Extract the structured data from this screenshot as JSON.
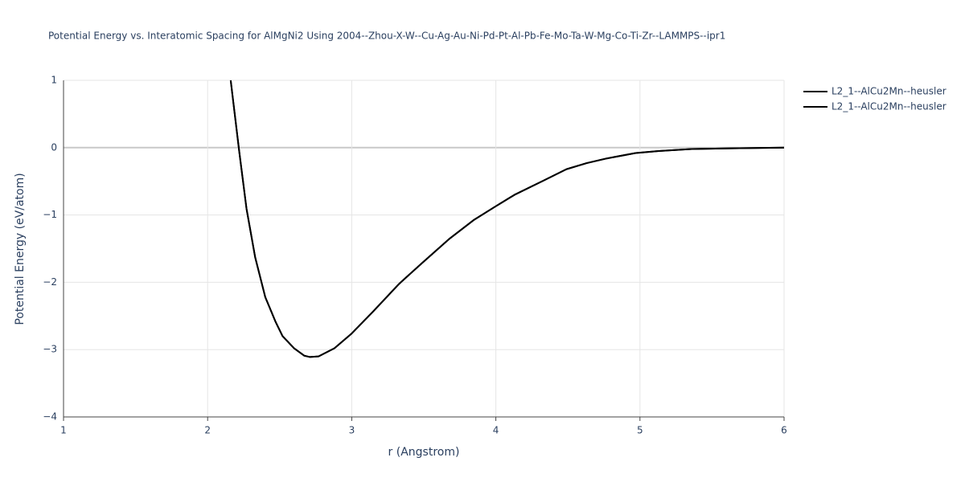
{
  "chart_data": {
    "type": "line",
    "title": "Potential Energy vs. Interatomic Spacing for AlMgNi2 Using 2004--Zhou-X-W--Cu-Ag-Au-Ni-Pd-Pt-Al-Pb-Fe-Mo-Ta-W-Mg-Co-Ti-Zr--LAMMPS--ipr1",
    "x_label": "r (Angstrom)",
    "y_label": "Potential Energy (eV/atom)",
    "x": [
      2.16,
      2.22,
      2.27,
      2.33,
      2.4,
      2.47,
      2.52,
      2.6,
      2.67,
      2.71,
      2.77,
      2.88,
      3.0,
      3.15,
      3.33,
      3.49,
      3.68,
      3.85,
      4.0,
      4.13,
      4.33,
      4.49,
      4.63,
      4.77,
      4.97,
      5.13,
      5.36,
      5.64,
      6.0
    ],
    "series": [
      {
        "name": "L2_1--AlCu2Mn--heusler",
        "color": "#000000",
        "values": [
          1,
          -0.07,
          -0.91,
          -1.63,
          -2.22,
          -2.58,
          -2.8,
          -2.98,
          -3.09,
          -3.11,
          -3.1,
          -2.98,
          -2.76,
          -2.43,
          -2.02,
          -1.71,
          -1.35,
          -1.07,
          -0.87,
          -0.7,
          -0.49,
          -0.32,
          -0.23,
          -0.16,
          -0.08,
          -0.05,
          -0.02,
          -0.01,
          0
        ]
      },
      {
        "name": "L2_1--AlCu2Mn--heusler",
        "color": "#000000",
        "values": [
          1,
          -0.07,
          -0.91,
          -1.63,
          -2.22,
          -2.58,
          -2.8,
          -2.98,
          -3.09,
          -3.11,
          -3.1,
          -2.98,
          -2.76,
          -2.43,
          -2.02,
          -1.71,
          -1.35,
          -1.07,
          -0.87,
          -0.7,
          -0.49,
          -0.32,
          -0.23,
          -0.16,
          -0.08,
          -0.05,
          -0.02,
          -0.01,
          0
        ]
      }
    ],
    "xlim": [
      1,
      6
    ],
    "ylim": [
      -4,
      1
    ],
    "xticks": [
      1,
      2,
      3,
      4,
      5,
      6
    ],
    "yticks": [
      {
        "value": -4,
        "label": "−4"
      },
      {
        "value": -3,
        "label": "−3"
      },
      {
        "value": -2,
        "label": "−2"
      },
      {
        "value": -1,
        "label": "−1"
      },
      0,
      1
    ],
    "grid": true
  }
}
